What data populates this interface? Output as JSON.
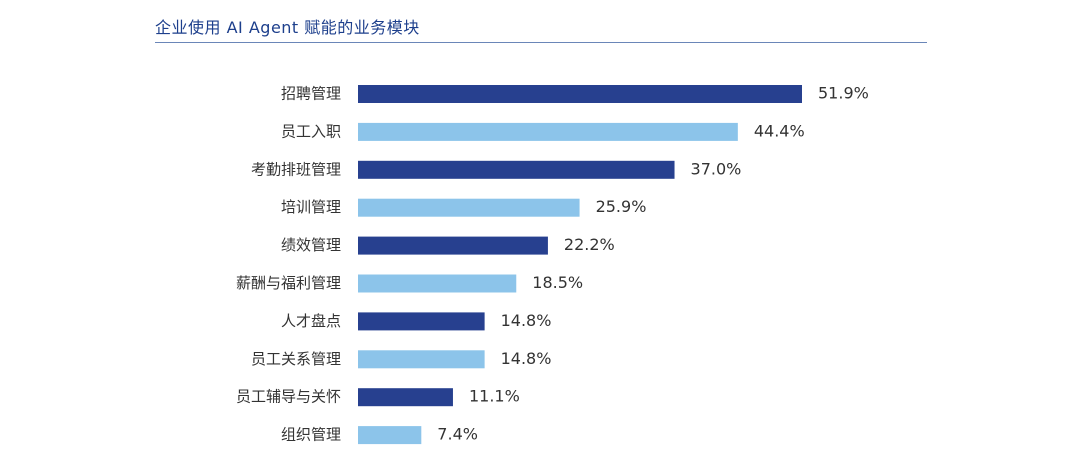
{
  "title": "企业使用 AI Agent 赋能的业务模块",
  "colors": {
    "dark": "#27408f",
    "light": "#8cc4ea"
  },
  "chart_data": {
    "type": "bar",
    "orientation": "horizontal",
    "title": "企业使用 AI Agent 赋能的业务模块",
    "categories": [
      "招聘管理",
      "员工入职",
      "考勤排班管理",
      "培训管理",
      "绩效管理",
      "薪酬与福利管理",
      "人才盘点",
      "员工关系管理",
      "员工辅导与关怀",
      "组织管理"
    ],
    "values": [
      51.9,
      44.4,
      37.0,
      25.9,
      22.2,
      18.5,
      14.8,
      14.8,
      11.1,
      7.4
    ],
    "value_labels": [
      "51.9%",
      "44.4%",
      "37.0%",
      "25.9%",
      "22.2%",
      "18.5%",
      "14.8%",
      "14.8%",
      "11.1%",
      "7.4%"
    ],
    "unit": "%",
    "xlim": [
      0,
      51.9
    ],
    "bar_colors": [
      "dark",
      "light",
      "dark",
      "light",
      "dark",
      "light",
      "dark",
      "light",
      "dark",
      "light"
    ],
    "grid": false,
    "legend": "none"
  }
}
